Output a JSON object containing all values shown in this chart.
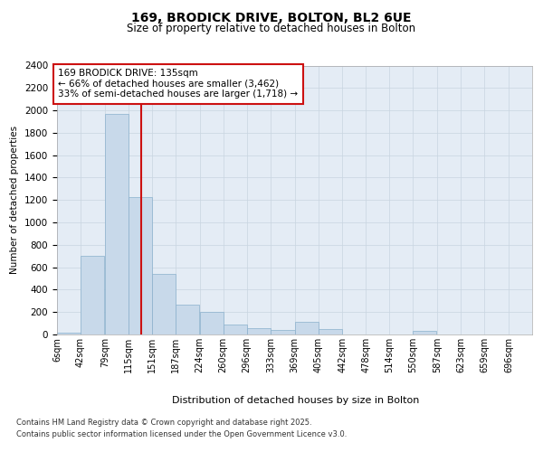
{
  "title1": "169, BRODICK DRIVE, BOLTON, BL2 6UE",
  "title2": "Size of property relative to detached houses in Bolton",
  "xlabel": "Distribution of detached houses by size in Bolton",
  "ylabel": "Number of detached properties",
  "bar_color": "#c8d9ea",
  "bar_edge_color": "#8ab0cc",
  "grid_color": "#c8d4e0",
  "background_color": "#e4ecf5",
  "vline_x": 135,
  "vline_color": "#cc1111",
  "annotation_box_color": "#cc1111",
  "annotation_text": "169 BRODICK DRIVE: 135sqm\n← 66% of detached houses are smaller (3,462)\n33% of semi-detached houses are larger (1,718) →",
  "annotation_fontsize": 7.5,
  "bins": [
    6,
    42,
    79,
    115,
    151,
    187,
    224,
    260,
    296,
    333,
    369,
    405,
    442,
    478,
    514,
    550,
    587,
    623,
    659,
    696,
    732
  ],
  "counts": [
    20,
    700,
    1970,
    1230,
    540,
    270,
    200,
    85,
    60,
    40,
    110,
    50,
    0,
    0,
    0,
    30,
    0,
    0,
    0,
    0
  ],
  "ylim": [
    0,
    2400
  ],
  "yticks": [
    0,
    200,
    400,
    600,
    800,
    1000,
    1200,
    1400,
    1600,
    1800,
    2000,
    2200,
    2400
  ],
  "footer1": "Contains HM Land Registry data © Crown copyright and database right 2025.",
  "footer2": "Contains public sector information licensed under the Open Government Licence v3.0."
}
